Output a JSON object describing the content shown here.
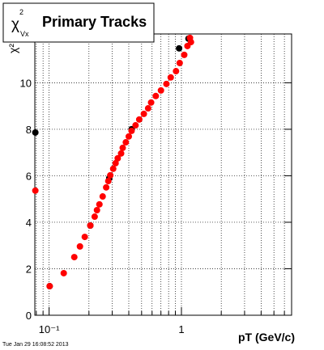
{
  "chart_data": {
    "type": "scatter",
    "title_symbol": "χ",
    "title_sup": "2",
    "title_sub": "Vx",
    "title": "Primary Tracks",
    "ylabel": "χ²",
    "xlabel": "pT (GeV/c)",
    "footer": "Tue Jan 29 16:08:52 2013",
    "xlog": true,
    "grid": true,
    "xlim": [
      0.078,
      6.8
    ],
    "ylim": [
      0,
      12.1
    ],
    "xticks": [
      {
        "value": 0.1,
        "label": "10⁻¹"
      },
      1
    ],
    "xminorticks": [
      0.08,
      0.09,
      0.2,
      0.3,
      0.4,
      0.5,
      0.6,
      0.7,
      0.8,
      0.9,
      2,
      3,
      4,
      5,
      6
    ],
    "yticks": [
      0,
      2,
      4,
      6,
      8,
      10
    ],
    "series": [
      {
        "name": "black",
        "color": "#000000",
        "x": [
          0.0787,
          0.101,
          0.205,
          0.285,
          0.42,
          0.96,
          1.13
        ],
        "values": [
          7.86,
          1.25,
          3.86,
          5.9,
          8.0,
          11.48,
          11.9
        ]
      },
      {
        "name": "red",
        "color": "#ff0000",
        "x": [
          0.0787,
          0.101,
          0.129,
          0.155,
          0.171,
          0.186,
          0.205,
          0.221,
          0.23,
          0.24,
          0.254,
          0.27,
          0.28,
          0.29,
          0.305,
          0.318,
          0.33,
          0.35,
          0.36,
          0.38,
          0.4,
          0.42,
          0.45,
          0.48,
          0.52,
          0.56,
          0.59,
          0.64,
          0.7,
          0.77,
          0.83,
          0.91,
          0.97,
          1.05,
          1.11,
          1.16,
          1.18
        ],
        "values": [
          5.36,
          1.25,
          1.81,
          2.5,
          2.96,
          3.37,
          3.86,
          4.24,
          4.52,
          4.77,
          5.11,
          5.5,
          5.77,
          6.02,
          6.3,
          6.54,
          6.75,
          6.96,
          7.2,
          7.44,
          7.69,
          7.93,
          8.17,
          8.42,
          8.66,
          8.9,
          9.15,
          9.43,
          9.67,
          9.95,
          10.23,
          10.5,
          10.85,
          11.2,
          11.58,
          11.93,
          11.75
        ]
      }
    ]
  }
}
